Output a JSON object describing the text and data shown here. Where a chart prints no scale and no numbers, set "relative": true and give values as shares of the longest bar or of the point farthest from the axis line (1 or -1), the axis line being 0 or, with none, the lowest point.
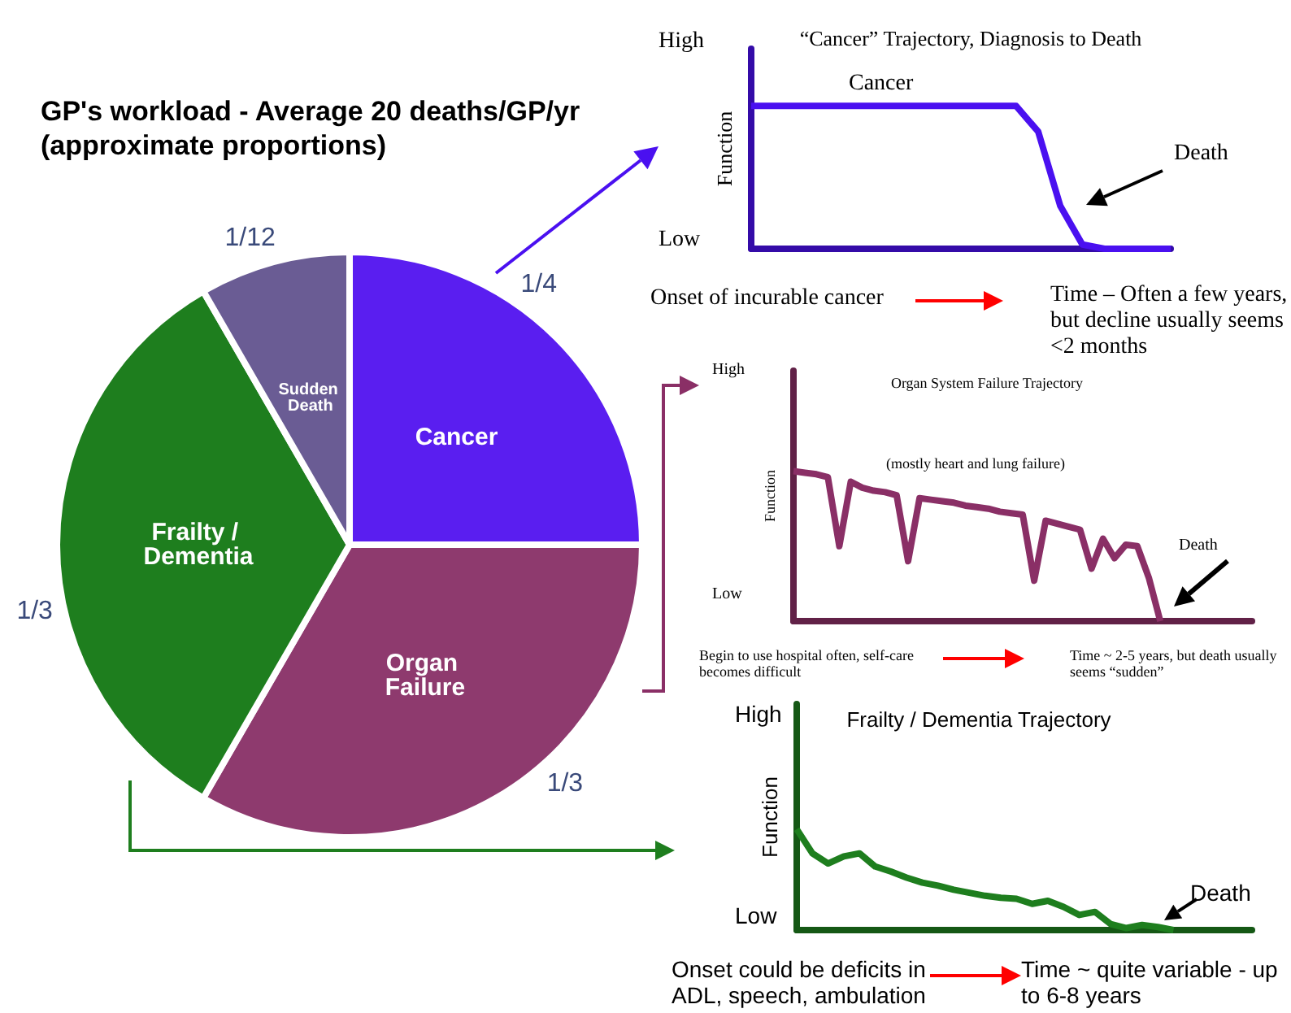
{
  "chart_data": [
    {
      "type": "pie",
      "title": "GP's workload - Average 20 deaths/GP/yr",
      "subtitle": "(approximate proportions)",
      "categories": [
        "Cancer",
        "Organ Failure",
        "Frailty / Dementia",
        "Sudden Death"
      ],
      "values": [
        0.25,
        0.3333,
        0.3333,
        0.0833
      ],
      "colors": [
        "#5a1ef0",
        "#8e3a6e",
        "#1e7e1e",
        "#6a5c94"
      ],
      "value_labels": [
        "1/4",
        "1/3",
        "1/3",
        "1/12"
      ]
    },
    {
      "type": "line",
      "relative": true,
      "title": "“Cancer” Trajectory, Diagnosis to Death",
      "ylabel": "Function",
      "marker": "none",
      "categories": [
        null,
        null,
        null,
        null,
        null,
        null,
        null,
        null,
        null,
        null,
        null,
        null,
        null,
        null,
        null,
        null,
        null,
        null,
        null,
        null
      ],
      "series": [
        {
          "color": "#4a10f0",
          "values": [
            1,
            1,
            1,
            1,
            1,
            1,
            1,
            1,
            1,
            1,
            1,
            1,
            1,
            0.82,
            0.3,
            0.03,
            0,
            0,
            0,
            0
          ]
        }
      ],
      "annotations": [
        "High",
        "Low",
        "Cancer",
        "Death",
        "Onset of incurable cancer",
        "Time – Often a few years, but decline usually seems <2 months"
      ]
    },
    {
      "type": "line",
      "relative": true,
      "title": "Organ System Failure Trajectory",
      "ylabel": "Function",
      "marker": "none",
      "categories": [
        null,
        null,
        null,
        null,
        null,
        null,
        null,
        null,
        null,
        null,
        null,
        null,
        null,
        null,
        null,
        null,
        null,
        null,
        null,
        null,
        null,
        null,
        null,
        null,
        null,
        null,
        null,
        null,
        null,
        null,
        null,
        null,
        null,
        null,
        null,
        null,
        null,
        null,
        null,
        null,
        null
      ],
      "series": [
        {
          "color": "#8a2f66",
          "values": [
            1,
            0.99,
            0.98,
            0.96,
            0.5,
            0.93,
            0.89,
            0.87,
            0.86,
            0.84,
            0.4,
            0.82,
            0.81,
            0.8,
            0.79,
            0.77,
            0.76,
            0.75,
            0.73,
            0.72,
            0.71,
            0.27,
            0.67,
            0.65,
            0.63,
            0.61,
            0.35,
            0.55,
            0.42,
            0.51,
            0.5,
            0.29,
            0,
            null,
            null,
            null,
            null,
            null,
            null,
            null,
            null
          ]
        }
      ],
      "annotations": [
        "High",
        "Low",
        "(mostly heart and lung failure)",
        "Death",
        "Begin to use hospital often, self-care becomes difficult",
        "Time ~ 2-5 years, but death usually seems “sudden”"
      ]
    },
    {
      "type": "line",
      "relative": true,
      "title": "Frailty / Dementia Trajectory",
      "ylabel": "Function",
      "marker": "none",
      "categories": [
        null,
        null,
        null,
        null,
        null,
        null,
        null,
        null,
        null,
        null,
        null,
        null,
        null,
        null,
        null,
        null,
        null,
        null,
        null,
        null,
        null,
        null,
        null,
        null,
        null,
        null,
        null,
        null,
        null,
        null
      ],
      "series": [
        {
          "color": "#1e7e1e",
          "values": [
            1,
            0.76,
            0.66,
            0.73,
            0.76,
            0.63,
            0.58,
            0.52,
            0.47,
            0.44,
            0.4,
            0.37,
            0.34,
            0.32,
            0.31,
            0.26,
            0.29,
            0.23,
            0.15,
            0.18,
            0.06,
            0.02,
            0.05,
            0.03,
            0,
            null,
            null,
            null,
            null,
            null
          ]
        }
      ],
      "annotations": [
        "High",
        "Low",
        "Death",
        "Onset could be deficits in ADL, speech, ambulation",
        "Time ~ quite variable - up to 6-8 years"
      ]
    }
  ]
}
